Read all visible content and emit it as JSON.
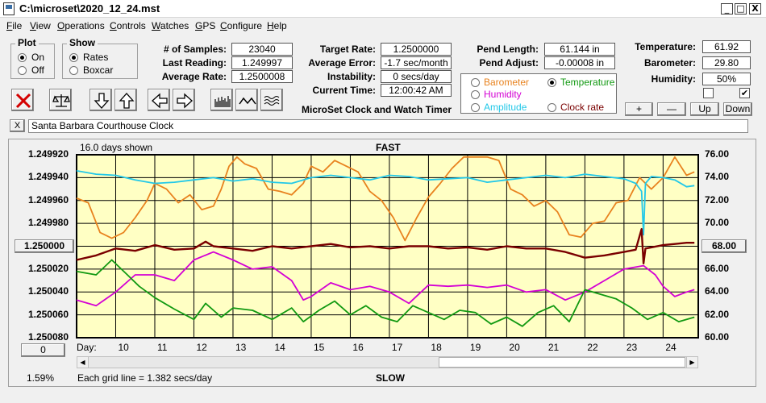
{
  "window": {
    "title": "C:\\microset\\2020_12_24.mst",
    "minimize": "_",
    "maximize": "□",
    "close": "X"
  },
  "menu": [
    "File",
    "View",
    "Operations",
    "Controls",
    "Watches",
    "GPS",
    "Configure",
    "Help"
  ],
  "plot": {
    "label": "Plot",
    "options": [
      "On",
      "Off"
    ],
    "selected": "On"
  },
  "show": {
    "label": "Show",
    "options": [
      "Rates",
      "Boxcar"
    ],
    "selected": "Rates"
  },
  "stats": {
    "samples_label": "# of Samples:",
    "samples": "23040",
    "last_reading_label": "Last Reading:",
    "last_reading": "1.249997",
    "avg_rate_label": "Average Rate:",
    "avg_rate": "1.2500008"
  },
  "target": {
    "target_rate_label": "Target Rate:",
    "target_rate": "1.2500000",
    "avg_error_label": "Average Error:",
    "avg_error": "-1.7 sec/month",
    "instability_label": "Instability:",
    "instability": "0 secs/day",
    "current_time_label": "Current Time:",
    "current_time": "12:00:42 AM"
  },
  "pend": {
    "length_label": "Pend Length:",
    "length": "61.144 in",
    "adjust_label": "Pend Adjust:",
    "adjust": "-0.00008 in"
  },
  "sensors": {
    "options": [
      {
        "label": "Barometer",
        "color": "#e8821e",
        "selected": false
      },
      {
        "label": "Temperature",
        "color": "#119911",
        "selected": true
      },
      {
        "label": "Humidity",
        "color": "#d400d4",
        "selected": false
      },
      {
        "label": "Amplitude",
        "color": "#22c8e8",
        "selected": false
      },
      {
        "label": "Clock rate",
        "color": "#7a0000",
        "selected": false
      }
    ]
  },
  "env": {
    "temperature_label": "Temperature:",
    "temperature": "61.92",
    "barometer_label": "Barometer:",
    "barometer": "29.80",
    "humidity_label": "Humidity:",
    "humidity": "50%",
    "checkbox1_checked": false,
    "checkbox2_checked": true
  },
  "scale_buttons": {
    "plus": "+",
    "minus": "—",
    "up": "Up",
    "down": "Down"
  },
  "app_title": "MicroSet Clock and Watch Timer",
  "toolbar_icons": [
    "cancel-icon",
    "balance-scale-icon",
    "arrow-down-icon",
    "arrow-up-icon",
    "arrow-left-icon",
    "arrow-right-icon",
    "rates-histogram-icon",
    "wave-icon",
    "multi-wave-icon"
  ],
  "clock_name": {
    "close": "X",
    "value": "Santa Barbara Courthouse Clock"
  },
  "chart_labels": {
    "days_shown": "16.0 days shown",
    "fast": "FAST",
    "slow": "SLOW",
    "day_label": "Day:",
    "grid_note": "Each grid line = 1.382 secs/day",
    "percent": "1.59%",
    "left_button": "1.250000",
    "right_button": "68.00",
    "zero_button": "0"
  },
  "chart_data": {
    "type": "line",
    "x_label": "Day:",
    "x_ticks": [
      "10",
      "11",
      "12",
      "13",
      "14",
      "15",
      "16",
      "17",
      "18",
      "19",
      "20",
      "21",
      "22",
      "23",
      "24"
    ],
    "xlim": [
      9.0,
      24.9
    ],
    "left_axis": {
      "ticks": [
        "1.249920",
        "1.249940",
        "1.249960",
        "1.249980",
        "1.250000",
        "1.250020",
        "1.250040",
        "1.250060",
        "1.250080"
      ],
      "ylim": [
        1.24992,
        1.25008
      ],
      "inverted": true
    },
    "right_axis": {
      "ticks": [
        "76.00",
        "74.00",
        "72.00",
        "70.00",
        "68.00",
        "66.00",
        "64.00",
        "62.00",
        "60.00"
      ],
      "ylim": [
        60,
        76
      ]
    },
    "series": [
      {
        "name": "Barometer",
        "axis": "right",
        "color": "#e8821e",
        "x": [
          9.0,
          9.3,
          9.6,
          9.9,
          10.2,
          10.5,
          10.8,
          11.0,
          11.3,
          11.6,
          11.9,
          12.2,
          12.5,
          12.7,
          12.9,
          13.1,
          13.3,
          13.6,
          13.9,
          14.2,
          14.5,
          14.8,
          15.0,
          15.3,
          15.6,
          15.9,
          16.2,
          16.5,
          16.8,
          17.1,
          17.4,
          17.7,
          18.0,
          18.3,
          18.6,
          18.9,
          19.2,
          19.5,
          19.8,
          20.1,
          20.4,
          20.7,
          21.0,
          21.3,
          21.6,
          21.9,
          22.2,
          22.5,
          22.8,
          23.1,
          23.4,
          23.7,
          24.0,
          24.3,
          24.6,
          24.8
        ],
        "y": [
          72.2,
          71.8,
          69.2,
          68.7,
          69.2,
          70.5,
          72.0,
          73.5,
          73.0,
          71.8,
          72.5,
          71.2,
          71.5,
          73.0,
          75.0,
          75.8,
          75.2,
          74.8,
          73.0,
          72.8,
          72.5,
          73.5,
          75.0,
          74.5,
          75.5,
          75.0,
          74.5,
          72.8,
          72.0,
          70.5,
          68.5,
          70.5,
          72.3,
          73.5,
          74.8,
          75.8,
          75.8,
          75.8,
          75.5,
          73.0,
          72.5,
          71.5,
          72.0,
          71.0,
          69.0,
          68.8,
          70.0,
          70.2,
          71.8,
          72.0,
          74.0,
          73.0,
          74.0,
          75.8,
          74.2,
          74.5
        ]
      },
      {
        "name": "Amplitude",
        "axis": "right",
        "color": "#22c8e8",
        "x": [
          9.0,
          9.5,
          10.0,
          10.5,
          11.0,
          11.5,
          12.0,
          12.5,
          13.0,
          13.5,
          14.0,
          14.5,
          15.0,
          15.5,
          16.0,
          16.5,
          17.0,
          17.5,
          18.0,
          18.5,
          19.0,
          19.5,
          20.0,
          20.5,
          21.0,
          21.5,
          22.0,
          22.5,
          23.0,
          23.3,
          23.45,
          23.5,
          23.55,
          23.7,
          24.0,
          24.3,
          24.6,
          24.8
        ],
        "y": [
          74.6,
          74.3,
          74.2,
          73.8,
          73.5,
          73.6,
          73.8,
          74.0,
          73.7,
          73.9,
          73.6,
          73.5,
          74.0,
          74.2,
          74.0,
          73.8,
          74.2,
          74.1,
          73.8,
          73.9,
          74.0,
          73.6,
          73.8,
          74.0,
          74.2,
          74.0,
          74.3,
          74.1,
          73.9,
          73.5,
          72.8,
          69.0,
          73.5,
          74.1,
          74.0,
          73.8,
          73.2,
          73.3
        ]
      },
      {
        "name": "Clock rate",
        "axis": "left",
        "color": "#7a0000",
        "x": [
          9.0,
          9.5,
          10.0,
          10.5,
          11.0,
          11.5,
          12.0,
          12.3,
          12.5,
          13.0,
          13.5,
          14.0,
          14.5,
          15.0,
          15.5,
          16.0,
          16.5,
          17.0,
          17.5,
          18.0,
          18.5,
          19.0,
          19.5,
          20.0,
          20.5,
          21.0,
          21.5,
          22.0,
          22.5,
          23.0,
          23.3,
          23.45,
          23.5,
          23.55,
          23.7,
          24.0,
          24.3,
          24.6,
          24.8
        ],
        "y": [
          1.250012,
          1.250008,
          1.250002,
          1.250004,
          1.249999,
          1.250003,
          1.250002,
          1.249996,
          1.25,
          1.250002,
          1.250004,
          1.25,
          1.250002,
          1.25,
          1.249998,
          1.250001,
          1.25,
          1.250002,
          1.25,
          1.25,
          1.250002,
          1.250001,
          1.250003,
          1.25,
          1.250002,
          1.250002,
          1.250005,
          1.25001,
          1.250008,
          1.250005,
          1.250003,
          1.249985,
          1.250015,
          1.250002,
          1.250001,
          1.249999,
          1.249998,
          1.249997,
          1.249997
        ]
      },
      {
        "name": "Humidity",
        "axis": "right",
        "color": "#d400d4",
        "x": [
          9.0,
          9.5,
          10.0,
          10.5,
          11.0,
          11.5,
          12.0,
          12.5,
          13.0,
          13.5,
          14.0,
          14.5,
          14.8,
          15.0,
          15.5,
          16.0,
          16.5,
          17.0,
          17.5,
          18.0,
          18.5,
          19.0,
          19.5,
          20.0,
          20.5,
          21.0,
          21.5,
          22.0,
          22.5,
          23.0,
          23.5,
          23.8,
          24.0,
          24.3,
          24.6,
          24.8
        ],
        "y": [
          63.3,
          62.8,
          64.0,
          65.5,
          65.5,
          65.0,
          66.8,
          67.5,
          66.8,
          66.0,
          66.2,
          65.0,
          63.3,
          63.6,
          64.8,
          64.2,
          64.5,
          64.0,
          63.0,
          64.6,
          64.5,
          64.6,
          64.4,
          64.6,
          64.0,
          64.2,
          63.3,
          64.0,
          65.0,
          66.0,
          66.3,
          65.5,
          64.5,
          63.6,
          64.0,
          64.2
        ]
      },
      {
        "name": "Temperature",
        "axis": "right",
        "color": "#119911",
        "x": [
          9.0,
          9.5,
          9.9,
          10.3,
          10.6,
          11.0,
          11.5,
          12.0,
          12.3,
          12.7,
          13.0,
          13.5,
          14.0,
          14.5,
          14.8,
          15.2,
          15.6,
          16.0,
          16.4,
          16.8,
          17.2,
          17.6,
          18.0,
          18.4,
          18.8,
          19.2,
          19.6,
          20.0,
          20.4,
          20.8,
          21.2,
          21.6,
          22.0,
          22.4,
          22.8,
          23.2,
          23.6,
          24.0,
          24.4,
          24.8
        ],
        "y": [
          65.8,
          65.5,
          66.8,
          65.5,
          64.5,
          63.5,
          62.5,
          61.6,
          63.0,
          61.8,
          62.6,
          62.4,
          61.6,
          62.6,
          61.4,
          62.4,
          63.2,
          62.0,
          62.8,
          61.8,
          61.4,
          62.8,
          62.2,
          61.6,
          62.4,
          62.2,
          61.2,
          61.8,
          61.0,
          62.2,
          62.8,
          61.4,
          64.2,
          63.8,
          63.4,
          62.6,
          61.6,
          62.2,
          61.4,
          61.8
        ]
      }
    ]
  }
}
